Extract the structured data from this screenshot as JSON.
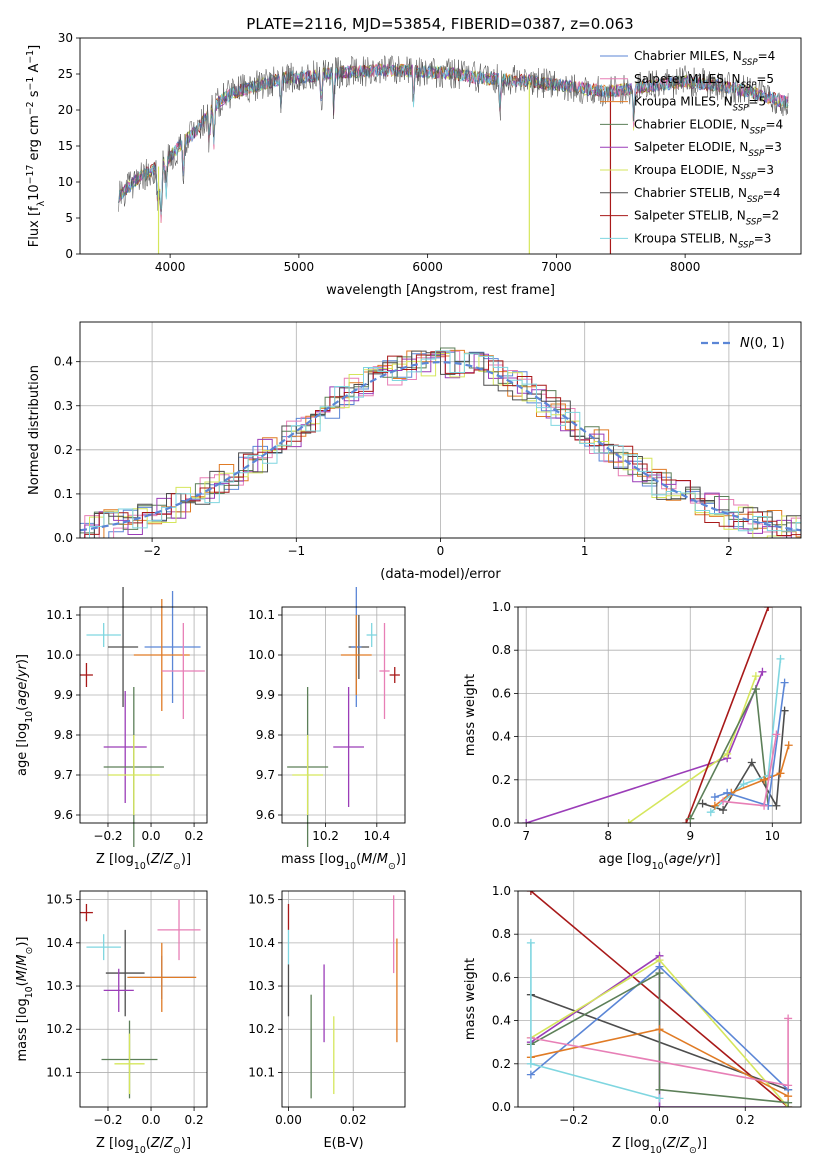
{
  "figure_title": "PLATE=2116, MJD=53854, FIBERID=0387, z=0.063",
  "colors": {
    "Chabrier MILES": "#5b86d6",
    "Salpeter MILES": "#e77fb6",
    "Kroupa MILES": "#e07b25",
    "Chabrier ELODIE": "#5c7f58",
    "Salpeter ELODIE": "#9b3db8",
    "Kroupa ELODIE": "#d5e65c",
    "Chabrier STELIB": "#4d4d4d",
    "Salpeter STELIB": "#a81919",
    "Kroupa STELIB": "#7fd6e0"
  },
  "chart_data": [
    {
      "id": "spectrum",
      "type": "line",
      "title": "PLATE=2116, MJD=53854, FIBERID=0387, z=0.063",
      "xlabel": "wavelength [Angstrom, rest frame]",
      "ylabel": "Flux [f_λ 10^-17 erg cm^-2 s^-1 A^-1]",
      "xlim": [
        3300,
        8900
      ],
      "ylim": [
        0,
        30
      ],
      "xticks": [
        4000,
        5000,
        6000,
        7000,
        8000
      ],
      "yticks": [
        0,
        5,
        10,
        15,
        20,
        25,
        30
      ],
      "grid": false,
      "legend_position": "right",
      "legend": [
        {
          "label": "Chabrier MILES, N",
          "sub": "SSP",
          "suffix": "=4"
        },
        {
          "label": "Salpeter MILES, N",
          "sub": "SSP",
          "suffix": "=5"
        },
        {
          "label": "Kroupa MILES, N",
          "sub": "SSP",
          "suffix": "=5"
        },
        {
          "label": "Chabrier ELODIE, N",
          "sub": "SSP",
          "suffix": "=4"
        },
        {
          "label": "Salpeter ELODIE, N",
          "sub": "SSP",
          "suffix": "=3"
        },
        {
          "label": "Kroupa ELODIE, N",
          "sub": "SSP",
          "suffix": "=3"
        },
        {
          "label": "Chabrier STELIB, N",
          "sub": "SSP",
          "suffix": "=4"
        },
        {
          "label": "Salpeter STELIB, N",
          "sub": "SSP",
          "suffix": "=2"
        },
        {
          "label": "Kroupa STELIB, N",
          "sub": "SSP",
          "suffix": "=3"
        }
      ],
      "continuum": {
        "x": [
          3600,
          3750,
          3900,
          4000,
          4100,
          4200,
          4300,
          4400,
          4500,
          4600,
          4700,
          4800,
          4900,
          5000,
          5200,
          5400,
          5600,
          5800,
          6000,
          6200,
          6400,
          6600,
          6800,
          7000,
          7200,
          7400,
          7600,
          7800,
          8000,
          8200,
          8400,
          8600,
          8800
        ],
        "y": [
          8,
          10.5,
          12,
          13.5,
          15.5,
          17,
          19.5,
          21.5,
          22.5,
          23,
          23.5,
          24,
          24.5,
          24.5,
          25,
          25.3,
          25.5,
          25.5,
          25.3,
          25,
          24.5,
          24.2,
          24,
          23.5,
          23,
          22.5,
          23,
          23.5,
          24,
          23.5,
          23,
          22,
          21
        ]
      },
      "drops": [
        {
          "x": 3910,
          "y": 0,
          "series": "Kroupa ELODIE"
        },
        {
          "x": 6790,
          "y": 0,
          "series": "Kroupa ELODIE"
        },
        {
          "x": 7420,
          "y": 0,
          "series": "Salpeter STELIB"
        }
      ]
    },
    {
      "id": "residuals",
      "type": "line",
      "xlabel": "(data-model)/error",
      "ylabel": "Normed distribution",
      "xlim": [
        -2.5,
        2.5
      ],
      "ylim": [
        0,
        0.49
      ],
      "xticks": [
        -2,
        -1,
        0,
        1,
        2
      ],
      "yticks": [
        0.0,
        0.1,
        0.2,
        0.3,
        0.4
      ],
      "grid": true,
      "legend_position": "top-right",
      "legend": [
        {
          "label": "N(0, 1)",
          "style": "dashed"
        }
      ],
      "gaussian": {
        "mean": 0,
        "sigma": 1
      }
    },
    {
      "id": "Z-age",
      "type": "scatter",
      "xlabel": "Z [log10(Z/Z⊙)]",
      "ylabel": "age [log10(age/yr)]",
      "xlim": [
        -0.33,
        0.26
      ],
      "ylim": [
        9.58,
        10.12
      ],
      "xticks": [
        -0.2,
        0.0,
        0.2
      ],
      "yticks": [
        9.6,
        9.7,
        9.8,
        9.9,
        10.0,
        10.1
      ],
      "grid": true,
      "points": [
        {
          "s": "Kroupa STELIB",
          "x": -0.22,
          "y": 10.05,
          "xe": 0.08,
          "ye": 0.03
        },
        {
          "s": "Salpeter STELIB",
          "x": -0.3,
          "y": 9.95,
          "xe": 0.03,
          "ye": 0.03
        },
        {
          "s": "Chabrier STELIB",
          "x": -0.13,
          "y": 10.02,
          "xe": 0.07,
          "ye": 0.15
        },
        {
          "s": "Chabrier MILES",
          "x": 0.1,
          "y": 10.02,
          "xe": 0.13,
          "ye": 0.14
        },
        {
          "s": "Kroupa MILES",
          "x": 0.05,
          "y": 10.0,
          "xe": 0.13,
          "ye": 0.14
        },
        {
          "s": "Salpeter MILES",
          "x": 0.15,
          "y": 9.96,
          "xe": 0.1,
          "ye": 0.12
        },
        {
          "s": "Salpeter ELODIE",
          "x": -0.12,
          "y": 9.77,
          "xe": 0.1,
          "ye": 0.14
        },
        {
          "s": "Chabrier ELODIE",
          "x": -0.08,
          "y": 9.72,
          "xe": 0.14,
          "ye": 0.2
        },
        {
          "s": "Kroupa ELODIE",
          "x": -0.08,
          "y": 9.7,
          "xe": 0.12,
          "ye": 0.1
        }
      ]
    },
    {
      "id": "mass-age",
      "type": "scatter",
      "xlabel": "mass [log10(M/M⊙)]",
      "xlim": [
        10.03,
        10.51
      ],
      "ylim": [
        9.58,
        10.12
      ],
      "xticks": [
        10.2,
        10.4
      ],
      "yticks": [
        9.6,
        9.7,
        9.8,
        9.9,
        10.0,
        10.1
      ],
      "grid": true,
      "points": [
        {
          "s": "Kroupa STELIB",
          "x": 10.38,
          "y": 10.05,
          "xe": 0.02,
          "ye": 0.03
        },
        {
          "s": "Salpeter STELIB",
          "x": 10.47,
          "y": 9.95,
          "xe": 0.02,
          "ye": 0.02
        },
        {
          "s": "Chabrier STELIB",
          "x": 10.33,
          "y": 10.02,
          "xe": 0.04,
          "ye": 0.08
        },
        {
          "s": "Chabrier MILES",
          "x": 10.32,
          "y": 10.02,
          "xe": 0.02,
          "ye": 0.15
        },
        {
          "s": "Kroupa MILES",
          "x": 10.32,
          "y": 10.0,
          "xe": 0.06,
          "ye": 0.1
        },
        {
          "s": "Salpeter MILES",
          "x": 10.43,
          "y": 9.96,
          "xe": 0.02,
          "ye": 0.12
        },
        {
          "s": "Salpeter ELODIE",
          "x": 10.29,
          "y": 9.77,
          "xe": 0.06,
          "ye": 0.15
        },
        {
          "s": "Chabrier ELODIE",
          "x": 10.13,
          "y": 9.72,
          "xe": 0.08,
          "ye": 0.2
        },
        {
          "s": "Kroupa ELODIE",
          "x": 10.13,
          "y": 9.7,
          "xe": 0.06,
          "ye": 0.1
        }
      ]
    },
    {
      "id": "age-weight",
      "type": "line",
      "xlabel": "age [log10(age/yr)]",
      "ylabel": "mass weight",
      "xlim": [
        6.9,
        10.35
      ],
      "ylim": [
        0,
        1
      ],
      "xticks": [
        7,
        8,
        9,
        10
      ],
      "yticks": [
        0.0,
        0.2,
        0.4,
        0.6,
        0.8,
        1.0
      ],
      "grid": true,
      "series": [
        {
          "s": "Salpeter ELODIE",
          "x": [
            7.0,
            9.45,
            9.88
          ],
          "y": [
            0.0,
            0.3,
            0.7
          ]
        },
        {
          "s": "Kroupa ELODIE",
          "x": [
            8.25,
            9.45,
            9.8
          ],
          "y": [
            0.0,
            0.32,
            0.68
          ]
        },
        {
          "s": "Salpeter STELIB",
          "x": [
            8.95,
            9.95
          ],
          "y": [
            0.0,
            1.0
          ]
        },
        {
          "s": "Chabrier ELODIE",
          "x": [
            9.0,
            9.8,
            9.95
          ],
          "y": [
            0.02,
            0.62,
            0.08
          ]
        },
        {
          "s": "Chabrier STELIB",
          "x": [
            9.15,
            9.4,
            9.75,
            10.05,
            10.15
          ],
          "y": [
            0.09,
            0.06,
            0.28,
            0.08,
            0.52
          ]
        },
        {
          "s": "Kroupa STELIB",
          "x": [
            9.25,
            9.65,
            9.95,
            10.1
          ],
          "y": [
            0.05,
            0.18,
            0.22,
            0.76
          ]
        },
        {
          "s": "Kroupa MILES",
          "x": [
            9.3,
            9.5,
            9.9,
            10.1,
            10.2
          ],
          "y": [
            0.08,
            0.14,
            0.2,
            0.23,
            0.36
          ]
        },
        {
          "s": "Chabrier MILES",
          "x": [
            9.3,
            9.45,
            9.95,
            10.15
          ],
          "y": [
            0.12,
            0.14,
            0.08,
            0.65
          ]
        },
        {
          "s": "Salpeter MILES",
          "x": [
            9.4,
            9.9,
            10.05
          ],
          "y": [
            0.1,
            0.08,
            0.41
          ]
        }
      ]
    },
    {
      "id": "Z-mass",
      "type": "scatter",
      "xlabel": "Z [log10(Z/Z⊙)]",
      "ylabel": "mass [log10(M/M⊙)]",
      "xlim": [
        -0.33,
        0.26
      ],
      "ylim": [
        10.02,
        10.52
      ],
      "xticks": [
        -0.2,
        0.0,
        0.2
      ],
      "yticks": [
        10.1,
        10.2,
        10.3,
        10.4,
        10.5
      ],
      "grid": true,
      "points": [
        {
          "s": "Salpeter STELIB",
          "x": -0.3,
          "y": 10.47,
          "xe": 0.03,
          "ye": 0.02
        },
        {
          "s": "Kroupa STELIB",
          "x": -0.22,
          "y": 10.39,
          "xe": 0.08,
          "ye": 0.03
        },
        {
          "s": "Salpeter MILES",
          "x": 0.13,
          "y": 10.43,
          "xe": 0.1,
          "ye": 0.07
        },
        {
          "s": "Chabrier STELIB",
          "x": -0.12,
          "y": 10.33,
          "xe": 0.09,
          "ye": 0.1
        },
        {
          "s": "Chabrier MILES",
          "x": 0.05,
          "y": 10.32,
          "xe": 0.15,
          "ye": 0.05
        },
        {
          "s": "Kroupa MILES",
          "x": 0.05,
          "y": 10.32,
          "xe": 0.16,
          "ye": 0.08
        },
        {
          "s": "Salpeter ELODIE",
          "x": -0.15,
          "y": 10.29,
          "xe": 0.07,
          "ye": 0.05
        },
        {
          "s": "Chabrier ELODIE",
          "x": -0.1,
          "y": 10.13,
          "xe": 0.13,
          "ye": 0.09
        },
        {
          "s": "Kroupa ELODIE",
          "x": -0.1,
          "y": 10.12,
          "xe": 0.07,
          "ye": 0.07
        }
      ]
    },
    {
      "id": "EBV-mass",
      "type": "scatter",
      "xlabel": "E(B-V)",
      "xlim": [
        -0.002,
        0.036
      ],
      "ylim": [
        10.02,
        10.52
      ],
      "xticks": [
        0.0,
        0.02
      ],
      "yticks": [
        10.1,
        10.2,
        10.3,
        10.4,
        10.5
      ],
      "grid": true,
      "points": [
        {
          "s": "Salpeter STELIB",
          "x": 0.0,
          "y": 10.46,
          "xe": 0.0,
          "ye": 0.03
        },
        {
          "s": "Kroupa STELIB",
          "x": 0.0,
          "y": 10.39,
          "xe": 0.0,
          "ye": 0.04
        },
        {
          "s": "Chabrier STELIB",
          "x": 0.0,
          "y": 10.29,
          "xe": 0.0,
          "ye": 0.06
        },
        {
          "s": "Chabrier ELODIE",
          "x": 0.007,
          "y": 10.16,
          "xe": 0.0,
          "ye": 0.12
        },
        {
          "s": "Salpeter ELODIE",
          "x": 0.011,
          "y": 10.26,
          "xe": 0.0,
          "ye": 0.09
        },
        {
          "s": "Kroupa ELODIE",
          "x": 0.014,
          "y": 10.14,
          "xe": 0.0,
          "ye": 0.09
        },
        {
          "s": "Salpeter MILES",
          "x": 0.0325,
          "y": 10.42,
          "xe": 0.0,
          "ye": 0.09
        },
        {
          "s": "Kroupa MILES",
          "x": 0.0335,
          "y": 10.29,
          "xe": 0.0,
          "ye": 0.12
        }
      ]
    },
    {
      "id": "Z-weight",
      "type": "line",
      "xlabel": "Z [log10(Z/Z⊙)]",
      "ylabel": "mass weight",
      "xlim": [
        -0.33,
        0.33
      ],
      "ylim": [
        0,
        1
      ],
      "xticks": [
        -0.2,
        0.0,
        0.2
      ],
      "yticks": [
        0.0,
        0.2,
        0.4,
        0.6,
        0.8,
        1.0
      ],
      "grid": true,
      "series": [
        {
          "s": "Salpeter STELIB",
          "x": [
            -0.3,
            0.3
          ],
          "y": [
            1.0,
            0.0
          ]
        },
        {
          "s": "Chabrier STELIB",
          "x": [
            -0.3,
            0.3
          ],
          "y": [
            0.52,
            0.08
          ]
        },
        {
          "s": "Salpeter ELODIE",
          "x": [
            -0.3,
            0.0,
            0.0,
            0.3
          ],
          "y": [
            0.3,
            0.7,
            0.0,
            0.0
          ]
        },
        {
          "s": "Kroupa ELODIE",
          "x": [
            -0.3,
            0.0,
            0.3
          ],
          "y": [
            0.32,
            0.68,
            0.0
          ]
        },
        {
          "s": "Chabrier MILES",
          "x": [
            -0.3,
            0.0,
            0.3
          ],
          "y": [
            0.15,
            0.65,
            0.08
          ]
        },
        {
          "s": "Chabrier ELODIE",
          "x": [
            -0.3,
            0.0,
            0.0,
            0.3
          ],
          "y": [
            0.29,
            0.62,
            0.08,
            0.02
          ]
        },
        {
          "s": "Kroupa MILES",
          "x": [
            -0.3,
            0.0,
            0.3
          ],
          "y": [
            0.23,
            0.36,
            0.05
          ]
        },
        {
          "s": "Salpeter MILES",
          "x": [
            -0.3,
            0.3,
            0.3
          ],
          "y": [
            0.32,
            0.1,
            0.41
          ]
        },
        {
          "s": "Kroupa STELIB",
          "x": [
            -0.3,
            -0.3,
            0.0
          ],
          "y": [
            0.76,
            0.2,
            0.04
          ]
        }
      ]
    }
  ]
}
